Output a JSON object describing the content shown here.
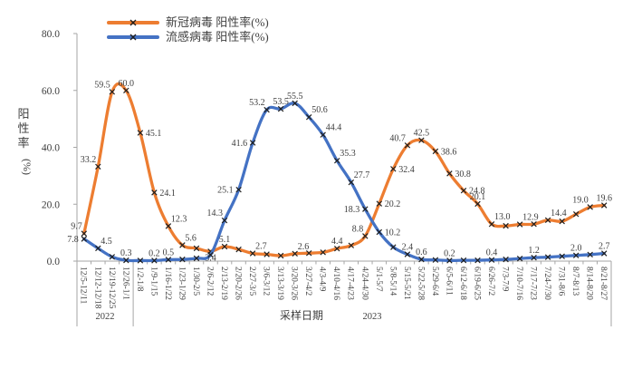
{
  "figure": {
    "background": "#ffffff"
  },
  "legend": {
    "position": "top-left"
  },
  "chart_data": {
    "type": "line",
    "smooth": true,
    "grid": false,
    "title": "",
    "xlabel": "采样日期",
    "ylabel": "阳性率(%)",
    "ylim": [
      0,
      80
    ],
    "ytick_labels": [
      "0.0",
      "20.0",
      "40.0",
      "60.0",
      "80.0"
    ],
    "axis_color": "#a6a6a6",
    "marker": "x",
    "marker_color": "#1f1f1f",
    "label_color": "#3d3d3d",
    "year_groups": [
      {
        "label": "2022",
        "from": 0,
        "to": 3
      },
      {
        "label": "2023",
        "from": 4,
        "to": 37
      }
    ],
    "categories": [
      "12/5-12/11",
      "12/12-12/18",
      "12/19-12/25",
      "12/26-1/1",
      "1/2-1/8",
      "1/9-1/15",
      "1/16-1/22",
      "1/23-1/29",
      "1/30-2/5",
      "2/6-2/12",
      "2/13-2/19",
      "2/20-2/26",
      "2/27-3/5",
      "3/6-3/12",
      "3/13-3/19",
      "3/20-3/26",
      "3/27-4/2",
      "4/3-4/9",
      "4/10-4/16",
      "4/17-4/23",
      "4/24-4/30",
      "5/1-5/7",
      "5/8-5/14",
      "5/15-5/21",
      "5/22-5/28",
      "5/29-6/4",
      "6/5-6/11",
      "6/12-6/18",
      "6/19-6/25",
      "6/26-7/2",
      "7/3-7/9",
      "7/10-7/16",
      "7/17-7/23",
      "7/24-7/30",
      "7/31-8/6",
      "8/7-8/13",
      "8/14-8/20",
      "8/21-8/27"
    ],
    "series": [
      {
        "name": "新冠病毒 阳性率(%)",
        "color": "#ED7D31",
        "values": [
          9.7,
          33.2,
          59.5,
          60.0,
          45.1,
          24.1,
          12.3,
          5.6,
          4.5,
          3.4,
          5.1,
          4.1,
          2.7,
          2.4,
          1.9,
          2.6,
          2.8,
          3.1,
          4.4,
          5.5,
          8.8,
          20.2,
          32.4,
          40.7,
          42.5,
          38.6,
          30.8,
          24.8,
          20.1,
          13.0,
          12.4,
          12.9,
          13.0,
          14.4,
          14.0,
          16.5,
          19.0,
          19.6
        ],
        "point_labels": [
          {
            "i": 0,
            "text": "9.7",
            "pos": "above-left"
          },
          {
            "i": 1,
            "text": "33.2",
            "pos": "above-left"
          },
          {
            "i": 2,
            "text": "59.5",
            "pos": "above-left"
          },
          {
            "i": 3,
            "text": "60.0",
            "pos": "above"
          },
          {
            "i": 4,
            "text": "45.1",
            "pos": "right"
          },
          {
            "i": 5,
            "text": "24.1",
            "pos": "right"
          },
          {
            "i": 6,
            "text": "12.3",
            "pos": "above-right"
          },
          {
            "i": 7,
            "text": "5.6",
            "pos": "above-right"
          },
          {
            "i": 9,
            "text": "3.4",
            "pos": "below"
          },
          {
            "i": 10,
            "text": "5.1",
            "pos": "above"
          },
          {
            "i": 12,
            "text": "2.7",
            "pos": "above-right"
          },
          {
            "i": 15,
            "text": "2.6",
            "pos": "above-right"
          },
          {
            "i": 18,
            "text": "4.4",
            "pos": "above"
          },
          {
            "i": 20,
            "text": "8.8",
            "pos": "above-left"
          },
          {
            "i": 21,
            "text": "20.2",
            "pos": "right"
          },
          {
            "i": 22,
            "text": "32.4",
            "pos": "right"
          },
          {
            "i": 23,
            "text": "40.7",
            "pos": "above-left"
          },
          {
            "i": 24,
            "text": "42.5",
            "pos": "above"
          },
          {
            "i": 25,
            "text": "38.6",
            "pos": "right"
          },
          {
            "i": 26,
            "text": "30.8",
            "pos": "right"
          },
          {
            "i": 27,
            "text": "24.8",
            "pos": "right"
          },
          {
            "i": 28,
            "text": "20.1",
            "pos": "above"
          },
          {
            "i": 29,
            "text": "13.0",
            "pos": "above-right"
          },
          {
            "i": 31,
            "text": "12.9",
            "pos": "above-right"
          },
          {
            "i": 33,
            "text": "14.4",
            "pos": "above-right"
          },
          {
            "i": 36,
            "text": "19.0",
            "pos": "above-left"
          },
          {
            "i": 37,
            "text": "19.6",
            "pos": "above"
          }
        ]
      },
      {
        "name": "流感病毒 阳性率(%)",
        "color": "#4472C4",
        "values": [
          7.8,
          4.5,
          1.5,
          0.3,
          0.2,
          0.2,
          0.5,
          0.6,
          1.0,
          2.2,
          14.3,
          25.1,
          41.6,
          53.2,
          53.5,
          55.5,
          50.6,
          44.4,
          35.3,
          27.7,
          18.3,
          10.2,
          4.9,
          2.4,
          0.6,
          0.4,
          0.2,
          0.3,
          0.3,
          0.4,
          0.6,
          0.9,
          1.2,
          1.4,
          1.7,
          2.0,
          2.3,
          2.7
        ],
        "point_labels": [
          {
            "i": 0,
            "text": "7.8",
            "pos": "left"
          },
          {
            "i": 1,
            "text": "4.5",
            "pos": "above-right"
          },
          {
            "i": 3,
            "text": "0.3",
            "pos": "above"
          },
          {
            "i": 5,
            "text": "0.2",
            "pos": "above"
          },
          {
            "i": 6,
            "text": "0.5",
            "pos": "above"
          },
          {
            "i": 10,
            "text": "14.3",
            "pos": "above-left"
          },
          {
            "i": 11,
            "text": "25.1",
            "pos": "left"
          },
          {
            "i": 12,
            "text": "41.6",
            "pos": "left"
          },
          {
            "i": 13,
            "text": "53.2",
            "pos": "above-left"
          },
          {
            "i": 14,
            "text": "53.5",
            "pos": "above"
          },
          {
            "i": 15,
            "text": "55.5",
            "pos": "above"
          },
          {
            "i": 16,
            "text": "50.6",
            "pos": "above-right"
          },
          {
            "i": 17,
            "text": "44.4",
            "pos": "above-right"
          },
          {
            "i": 18,
            "text": "35.3",
            "pos": "above-right"
          },
          {
            "i": 19,
            "text": "27.7",
            "pos": "above-right"
          },
          {
            "i": 20,
            "text": "18.3",
            "pos": "left"
          },
          {
            "i": 21,
            "text": "10.2",
            "pos": "right"
          },
          {
            "i": 23,
            "text": "2.4",
            "pos": "above"
          },
          {
            "i": 24,
            "text": "0.6",
            "pos": "above"
          },
          {
            "i": 26,
            "text": "0.2",
            "pos": "above"
          },
          {
            "i": 29,
            "text": "0.4",
            "pos": "above"
          },
          {
            "i": 32,
            "text": "1.2",
            "pos": "above"
          },
          {
            "i": 35,
            "text": "2.0",
            "pos": "above"
          },
          {
            "i": 37,
            "text": "2.7",
            "pos": "above"
          }
        ]
      }
    ]
  }
}
